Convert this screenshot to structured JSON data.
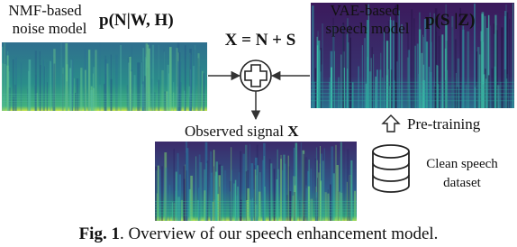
{
  "noise_model": {
    "label": [
      "NMF-based",
      "noise model"
    ],
    "formula": "p(N|W, H)"
  },
  "speech_model": {
    "label": [
      "VAE-based",
      "speech model"
    ],
    "formula": "p(S |Z)"
  },
  "mixing": {
    "formula": "X = N + S"
  },
  "observed": {
    "label": "Observed signal",
    "symbol": "X"
  },
  "pretraining": {
    "label": "Pre-training"
  },
  "dataset": {
    "label": [
      "Clean speech",
      "dataset"
    ]
  },
  "caption": {
    "label": "Fig. 1",
    "text": ". Overview of our speech enhancement model."
  }
}
